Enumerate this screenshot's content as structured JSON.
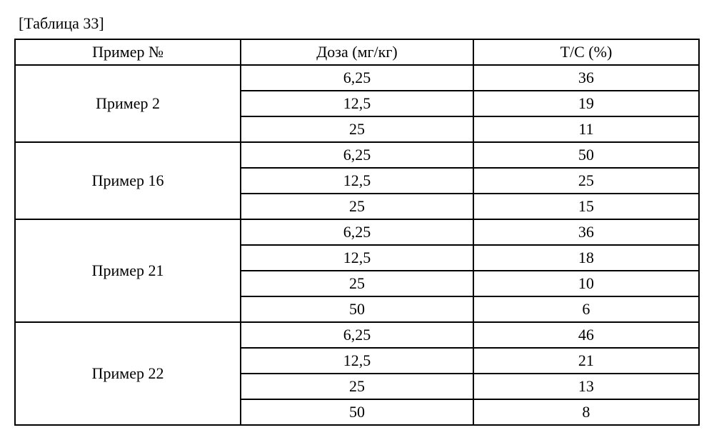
{
  "caption": "[Таблица 33]",
  "headers": {
    "example": "Пример №",
    "dose": "Доза (мг/кг)",
    "tc": "T/C (%)"
  },
  "groups": [
    {
      "label": "Пример 2",
      "rows": [
        {
          "dose": "6,25",
          "tc": "36"
        },
        {
          "dose": "12,5",
          "tc": "19"
        },
        {
          "dose": "25",
          "tc": "11"
        }
      ]
    },
    {
      "label": "Пример 16",
      "rows": [
        {
          "dose": "6,25",
          "tc": "50"
        },
        {
          "dose": "12,5",
          "tc": "25"
        },
        {
          "dose": "25",
          "tc": "15"
        }
      ]
    },
    {
      "label": "Пример 21",
      "rows": [
        {
          "dose": "6,25",
          "tc": "36"
        },
        {
          "dose": "12,5",
          "tc": "18"
        },
        {
          "dose": "25",
          "tc": "10"
        },
        {
          "dose": "50",
          "tc": "6"
        }
      ]
    },
    {
      "label": "Пример 22",
      "rows": [
        {
          "dose": "6,25",
          "tc": "46"
        },
        {
          "dose": "12,5",
          "tc": "21"
        },
        {
          "dose": "25",
          "tc": "13"
        },
        {
          "dose": "50",
          "tc": "8"
        }
      ]
    }
  ]
}
